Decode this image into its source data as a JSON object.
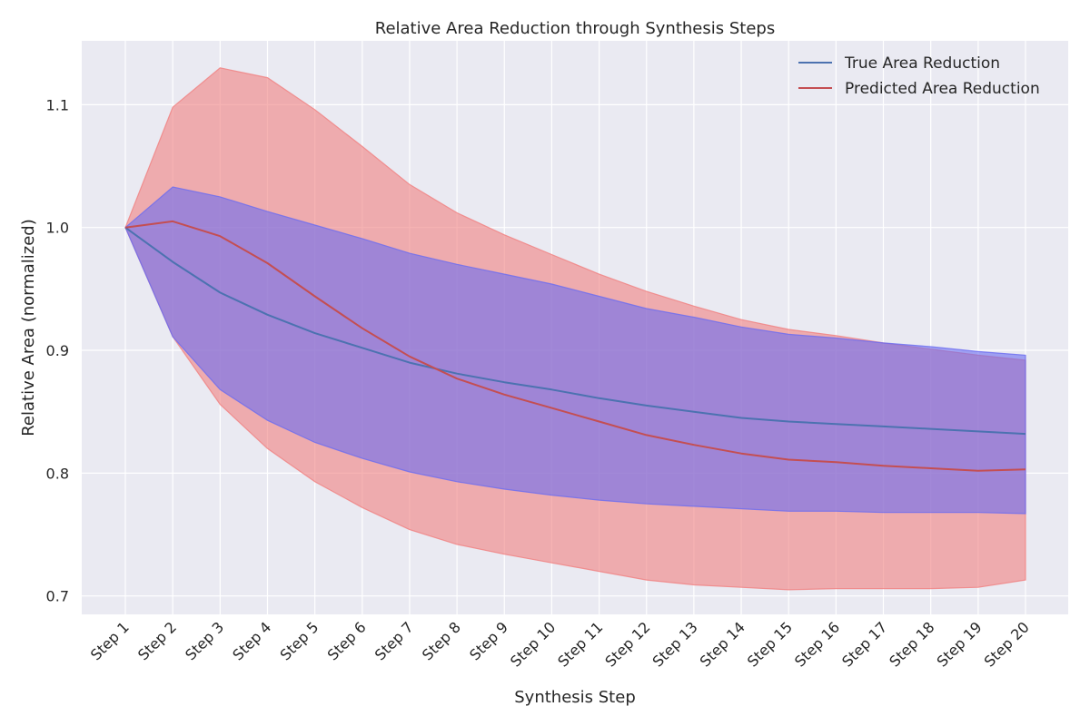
{
  "chart_data": {
    "type": "line",
    "title": "Relative Area Reduction through Synthesis Steps",
    "xlabel": "Synthesis Step",
    "ylabel": "Relative Area (normalized)",
    "categories": [
      "Step 1",
      "Step 2",
      "Step 3",
      "Step 4",
      "Step 5",
      "Step 6",
      "Step 7",
      "Step 8",
      "Step 9",
      "Step 10",
      "Step 11",
      "Step 12",
      "Step 13",
      "Step 14",
      "Step 15",
      "Step 16",
      "Step 17",
      "Step 18",
      "Step 19",
      "Step 20"
    ],
    "ylim": [
      0.685,
      1.152
    ],
    "yticks": [
      0.7,
      0.8,
      0.9,
      1.0,
      1.1
    ],
    "ytick_labels": [
      "0.7",
      "0.8",
      "0.9",
      "1.0",
      "1.1"
    ],
    "grid": true,
    "legend_position": "top-right",
    "series": [
      {
        "name": "True Area Reduction",
        "color": "#4c72b0",
        "band_color": "#6a6cf0",
        "values": [
          1.0,
          0.972,
          0.947,
          0.929,
          0.914,
          0.902,
          0.89,
          0.881,
          0.874,
          0.868,
          0.861,
          0.855,
          0.85,
          0.845,
          0.842,
          0.84,
          0.838,
          0.836,
          0.834,
          0.832
        ],
        "upper": [
          1.0,
          1.033,
          1.025,
          1.013,
          1.002,
          0.991,
          0.979,
          0.97,
          0.962,
          0.954,
          0.944,
          0.934,
          0.927,
          0.919,
          0.913,
          0.91,
          0.906,
          0.903,
          0.899,
          0.896
        ],
        "lower": [
          1.0,
          0.911,
          0.868,
          0.843,
          0.825,
          0.812,
          0.801,
          0.793,
          0.787,
          0.782,
          0.778,
          0.775,
          0.773,
          0.771,
          0.769,
          0.769,
          0.768,
          0.768,
          0.768,
          0.767
        ]
      },
      {
        "name": "Predicted Area Reduction",
        "color": "#c44e52",
        "band_color": "#f08080",
        "values": [
          1.0,
          1.005,
          0.993,
          0.971,
          0.944,
          0.918,
          0.895,
          0.877,
          0.864,
          0.853,
          0.842,
          0.831,
          0.823,
          0.816,
          0.811,
          0.809,
          0.806,
          0.804,
          0.802,
          0.803
        ],
        "upper": [
          1.0,
          1.098,
          1.13,
          1.122,
          1.096,
          1.066,
          1.035,
          1.012,
          0.994,
          0.978,
          0.962,
          0.948,
          0.936,
          0.925,
          0.917,
          0.912,
          0.906,
          0.901,
          0.896,
          0.892
        ],
        "lower": [
          1.0,
          0.911,
          0.856,
          0.82,
          0.793,
          0.772,
          0.754,
          0.742,
          0.734,
          0.727,
          0.72,
          0.713,
          0.709,
          0.707,
          0.705,
          0.706,
          0.706,
          0.706,
          0.707,
          0.713
        ]
      }
    ]
  }
}
